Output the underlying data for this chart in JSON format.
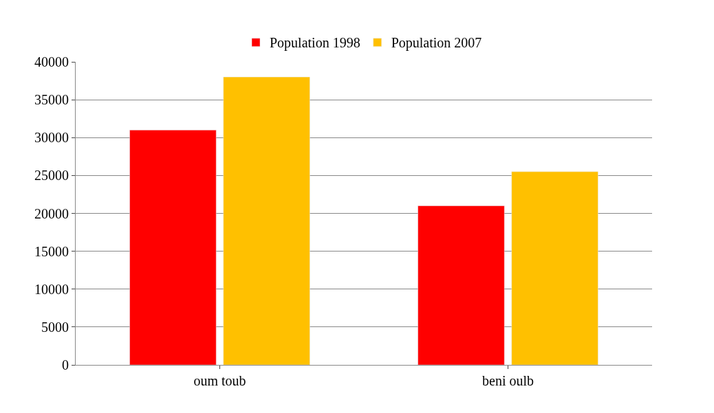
{
  "chart_data": {
    "type": "bar",
    "categories": [
      "oum toub",
      "beni oulb"
    ],
    "series": [
      {
        "name": "Population 1998",
        "color": "#ff0000",
        "values": [
          31000,
          21000
        ]
      },
      {
        "name": "Population 2007",
        "color": "#ffc000",
        "values": [
          38000,
          25500
        ]
      }
    ],
    "ylim": [
      0,
      40000
    ],
    "yticks": [
      0,
      5000,
      10000,
      15000,
      20000,
      25000,
      30000,
      35000,
      40000
    ],
    "grid": "y",
    "legend": "top"
  }
}
